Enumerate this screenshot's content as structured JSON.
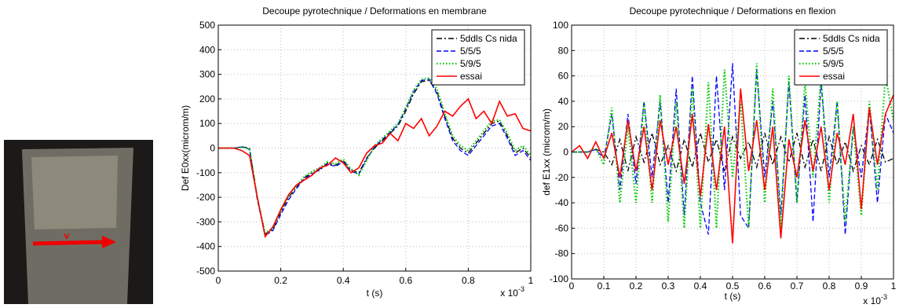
{
  "photo": {
    "label": "v"
  },
  "chart_data": [
    {
      "type": "line",
      "title": "Decoupe pyrotechnique / Deformations en membrane",
      "xlabel": "t (s)",
      "ylabel": "Def E0xx(microm/m)",
      "x_multiplier": {
        "base": "x 10",
        "exponent": "-3"
      },
      "x": [
        0,
        0.025,
        0.05,
        0.075,
        0.1,
        0.125,
        0.15,
        0.175,
        0.2,
        0.225,
        0.25,
        0.275,
        0.3,
        0.325,
        0.35,
        0.375,
        0.4,
        0.425,
        0.45,
        0.475,
        0.5,
        0.525,
        0.55,
        0.575,
        0.6,
        0.625,
        0.65,
        0.675,
        0.7,
        0.725,
        0.75,
        0.775,
        0.8,
        0.825,
        0.85,
        0.875,
        0.9,
        0.925,
        0.95,
        0.975,
        1
      ],
      "xlim": [
        0,
        1
      ],
      "xticks": [
        0,
        0.2,
        0.4,
        0.6,
        0.8,
        1
      ],
      "ylim": [
        -500,
        500
      ],
      "yticks": [
        -500,
        -400,
        -300,
        -200,
        -100,
        0,
        100,
        200,
        300,
        400,
        500
      ],
      "grid": true,
      "legend": "upper right",
      "series": [
        {
          "name": "5ddls Cs nida",
          "color": "#000000",
          "linestyle": "-.",
          "values": [
            0,
            0,
            0,
            5,
            0,
            -200,
            -350,
            -330,
            -260,
            -200,
            -160,
            -120,
            -100,
            -90,
            -60,
            -70,
            -50,
            -90,
            -100,
            -40,
            0,
            30,
            60,
            90,
            150,
            220,
            270,
            275,
            230,
            130,
            40,
            0,
            -20,
            20,
            60,
            100,
            110,
            50,
            -20,
            0,
            -40
          ]
        },
        {
          "name": "5/5/5",
          "color": "#0000ff",
          "linestyle": "--",
          "values": [
            0,
            0,
            0,
            5,
            -5,
            -210,
            -355,
            -335,
            -270,
            -210,
            -165,
            -125,
            -105,
            -85,
            -65,
            -75,
            -55,
            -95,
            -105,
            -45,
            5,
            35,
            65,
            95,
            160,
            230,
            275,
            280,
            220,
            120,
            30,
            -10,
            -30,
            10,
            50,
            90,
            100,
            40,
            -30,
            -10,
            -50
          ]
        },
        {
          "name": "5/9/5",
          "color": "#00cc00",
          "linestyle": ":",
          "values": [
            0,
            0,
            0,
            3,
            -3,
            -205,
            -345,
            -325,
            -255,
            -195,
            -155,
            -115,
            -95,
            -80,
            -55,
            -65,
            -45,
            -85,
            -110,
            -50,
            10,
            40,
            70,
            100,
            165,
            235,
            280,
            285,
            240,
            140,
            50,
            10,
            -10,
            30,
            70,
            110,
            115,
            60,
            -10,
            10,
            -30
          ]
        },
        {
          "name": "essai",
          "color": "#ff0000",
          "linestyle": "-",
          "values": [
            0,
            0,
            0,
            -10,
            -30,
            -200,
            -360,
            -320,
            -250,
            -190,
            -150,
            -130,
            -110,
            -80,
            -70,
            -40,
            -60,
            -100,
            -80,
            -20,
            10,
            20,
            60,
            30,
            100,
            80,
            120,
            50,
            90,
            150,
            130,
            170,
            200,
            120,
            150,
            100,
            190,
            130,
            140,
            80,
            70
          ]
        }
      ]
    },
    {
      "type": "line",
      "title": "Decoupe pyrotechnique / Deformations en flexion",
      "xlabel": "t (s)",
      "ylabel": "def E1xx (microm/m)",
      "x_multiplier": {
        "base": "x 10",
        "exponent": "-3"
      },
      "x": [
        0,
        0.025,
        0.05,
        0.075,
        0.1,
        0.125,
        0.15,
        0.175,
        0.2,
        0.225,
        0.25,
        0.275,
        0.3,
        0.325,
        0.35,
        0.375,
        0.4,
        0.425,
        0.45,
        0.475,
        0.5,
        0.525,
        0.55,
        0.575,
        0.6,
        0.625,
        0.65,
        0.675,
        0.7,
        0.725,
        0.75,
        0.775,
        0.8,
        0.825,
        0.85,
        0.875,
        0.9,
        0.925,
        0.95,
        0.975,
        1
      ],
      "xlim": [
        0,
        1
      ],
      "xticks": [
        0,
        0.1,
        0.2,
        0.3,
        0.4,
        0.5,
        0.6,
        0.7,
        0.8,
        0.9,
        1
      ],
      "ylim": [
        -100,
        100
      ],
      "yticks": [
        -100,
        -80,
        -60,
        -40,
        -20,
        0,
        20,
        40,
        60,
        80,
        100
      ],
      "grid": true,
      "legend": "upper right",
      "series": [
        {
          "name": "5ddls Cs nida",
          "color": "#000000",
          "linestyle": "-.",
          "values": [
            0,
            0,
            0,
            2,
            0,
            -10,
            10,
            -15,
            12,
            -8,
            15,
            -10,
            5,
            -15,
            10,
            -12,
            15,
            -8,
            10,
            -15,
            12,
            -5,
            8,
            -12,
            15,
            -10,
            12,
            -8,
            15,
            -12,
            10,
            -15,
            12,
            -10,
            8,
            -15,
            5,
            -10,
            10,
            -8,
            -5
          ]
        },
        {
          "name": "5/5/5",
          "color": "#0000ff",
          "linestyle": "--",
          "values": [
            0,
            0,
            0,
            2,
            -5,
            30,
            -30,
            30,
            -25,
            40,
            -20,
            40,
            -40,
            50,
            -50,
            60,
            -40,
            -65,
            60,
            -30,
            70,
            -50,
            -60,
            65,
            -20,
            40,
            -50,
            55,
            -40,
            45,
            -55,
            55,
            -20,
            40,
            -65,
            20,
            -20,
            35,
            -40,
            30,
            15
          ]
        },
        {
          "name": "5/9/5",
          "color": "#00cc00",
          "linestyle": ":",
          "values": [
            0,
            0,
            0,
            3,
            -10,
            35,
            -40,
            20,
            -40,
            40,
            -40,
            45,
            -55,
            40,
            -60,
            50,
            -60,
            55,
            -60,
            65,
            -20,
            40,
            -60,
            70,
            -40,
            50,
            -60,
            60,
            -40,
            55,
            -20,
            60,
            -40,
            40,
            -55,
            20,
            -50,
            40,
            -30,
            60,
            25
          ]
        },
        {
          "name": "essai",
          "color": "#ff0000",
          "linestyle": "-",
          "values": [
            0,
            5,
            -5,
            8,
            -5,
            15,
            -20,
            25,
            -15,
            20,
            -30,
            25,
            -10,
            20,
            -25,
            30,
            -35,
            22,
            -30,
            20,
            -72,
            50,
            -15,
            25,
            -30,
            20,
            -68,
            10,
            -20,
            25,
            -15,
            20,
            -30,
            15,
            -10,
            30,
            -45,
            35,
            -10,
            30,
            45
          ]
        }
      ]
    }
  ]
}
